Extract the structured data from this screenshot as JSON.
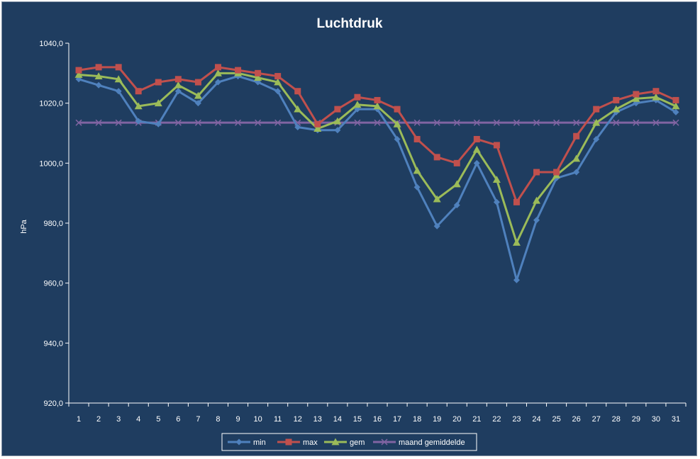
{
  "chart_data": {
    "type": "line",
    "title": "Luchtdruk",
    "xlabel": "",
    "ylabel": "hPa",
    "ylim": [
      920,
      1040
    ],
    "yticks": [
      "920,0",
      "940,0",
      "960,0",
      "980,0",
      "1000,0",
      "1020,0",
      "1040,0"
    ],
    "categories": [
      "1",
      "2",
      "3",
      "4",
      "5",
      "6",
      "7",
      "8",
      "9",
      "10",
      "11",
      "12",
      "13",
      "14",
      "15",
      "16",
      "17",
      "18",
      "19",
      "20",
      "21",
      "22",
      "23",
      "24",
      "25",
      "26",
      "27",
      "28",
      "29",
      "30",
      "31"
    ],
    "grid": false,
    "legend_position": "bottom",
    "series": [
      {
        "name": "min",
        "color": "#4f81bd",
        "marker": "diamond",
        "values": [
          1028,
          1026,
          1024,
          1014,
          1013,
          1024,
          1020,
          1027,
          1029,
          1027,
          1024,
          1012,
          1011,
          1011,
          1018,
          1018,
          1008,
          992,
          979,
          986,
          1000,
          987,
          961,
          981,
          995,
          997,
          1008,
          1017,
          1020,
          1021,
          1017
        ]
      },
      {
        "name": "max",
        "color": "#c0504d",
        "marker": "square",
        "values": [
          1031,
          1032,
          1032,
          1024,
          1027,
          1028,
          1027,
          1032,
          1031,
          1030,
          1029,
          1024,
          1013,
          1018,
          1022,
          1021,
          1018,
          1008,
          1002,
          1000,
          1008,
          1006,
          987,
          997,
          997,
          1009,
          1018,
          1021,
          1023,
          1024,
          1021
        ]
      },
      {
        "name": "gem",
        "color": "#9bbb59",
        "marker": "triangle",
        "values": [
          1029.5,
          1029,
          1028,
          1019,
          1020,
          1026,
          1022.5,
          1030,
          1030,
          1028.5,
          1027,
          1018,
          1011.5,
          1014,
          1019.5,
          1019,
          1013,
          997.5,
          988,
          993,
          1004.5,
          994.5,
          973.5,
          987.5,
          996,
          1001.5,
          1013.5,
          1018,
          1021.5,
          1022,
          1019
        ]
      },
      {
        "name": "maand gemiddelde",
        "color": "#8064a2",
        "marker": "x",
        "values": [
          1013.5,
          1013.5,
          1013.5,
          1013.5,
          1013.5,
          1013.5,
          1013.5,
          1013.5,
          1013.5,
          1013.5,
          1013.5,
          1013.5,
          1013.5,
          1013.5,
          1013.5,
          1013.5,
          1013.5,
          1013.5,
          1013.5,
          1013.5,
          1013.5,
          1013.5,
          1013.5,
          1013.5,
          1013.5,
          1013.5,
          1013.5,
          1013.5,
          1013.5,
          1013.5,
          1013.5
        ]
      }
    ]
  }
}
